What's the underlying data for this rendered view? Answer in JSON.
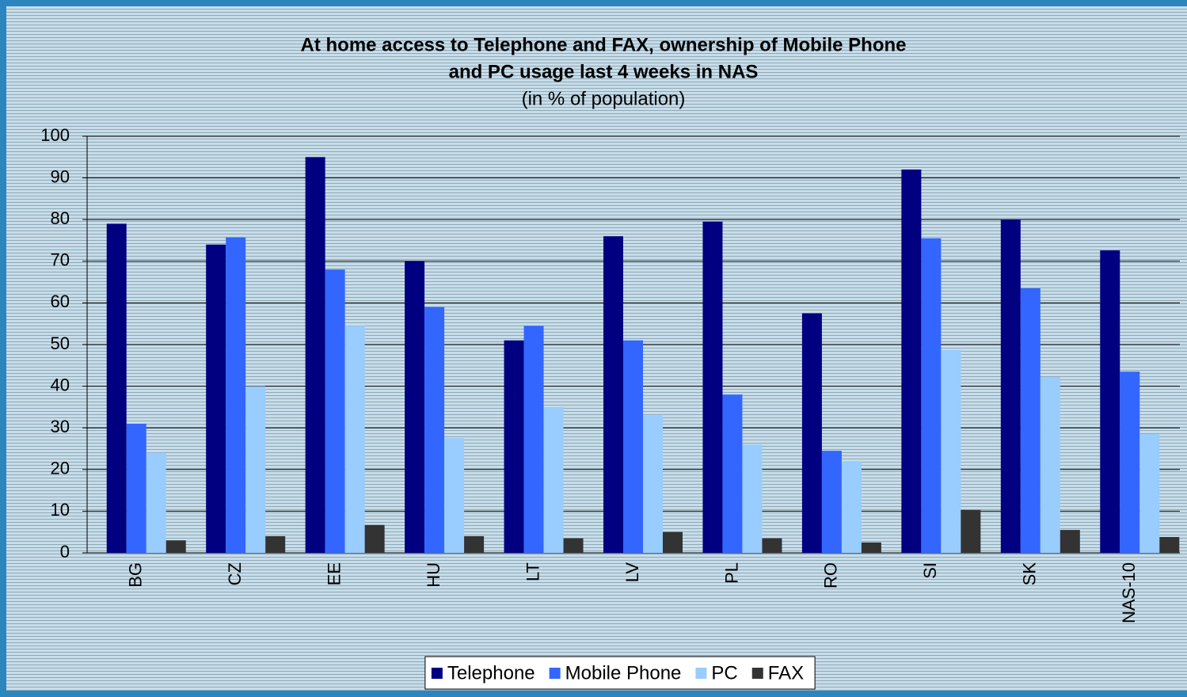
{
  "chart_data": {
    "type": "bar",
    "title": [
      "At home access to Telephone and FAX, ownership of Mobile Phone",
      "and PC usage last 4 weeks in NAS"
    ],
    "subtitle": "(in % of population)",
    "categories": [
      "BG",
      "CZ",
      "EE",
      "HU",
      "LT",
      "LV",
      "PL",
      "RO",
      "SI",
      "SK",
      "NAS-10"
    ],
    "series": [
      {
        "name": "Telephone",
        "color": "#000080",
        "values": [
          79,
          74,
          95,
          70,
          51,
          76,
          79.5,
          57.5,
          92,
          80,
          72.6
        ]
      },
      {
        "name": "Mobile Phone",
        "color": "#3366ff",
        "values": [
          31,
          75.7,
          68,
          59,
          54.5,
          51,
          38,
          24.5,
          75.5,
          63.5,
          43.5
        ]
      },
      {
        "name": "PC",
        "color": "#99ccff",
        "values": [
          24,
          40,
          54.5,
          27.5,
          35,
          33,
          26,
          22,
          48.7,
          42.2,
          28.5
        ]
      },
      {
        "name": "FAX",
        "color": "#333333",
        "values": [
          3,
          4,
          6.7,
          4,
          3.5,
          5,
          3.5,
          2.5,
          10.3,
          5.5,
          3.8
        ]
      }
    ],
    "ylim": [
      0,
      100
    ],
    "yticks": [
      0,
      10,
      20,
      30,
      40,
      50,
      60,
      70,
      80,
      90,
      100
    ],
    "grid": true,
    "legend": "bottom"
  }
}
